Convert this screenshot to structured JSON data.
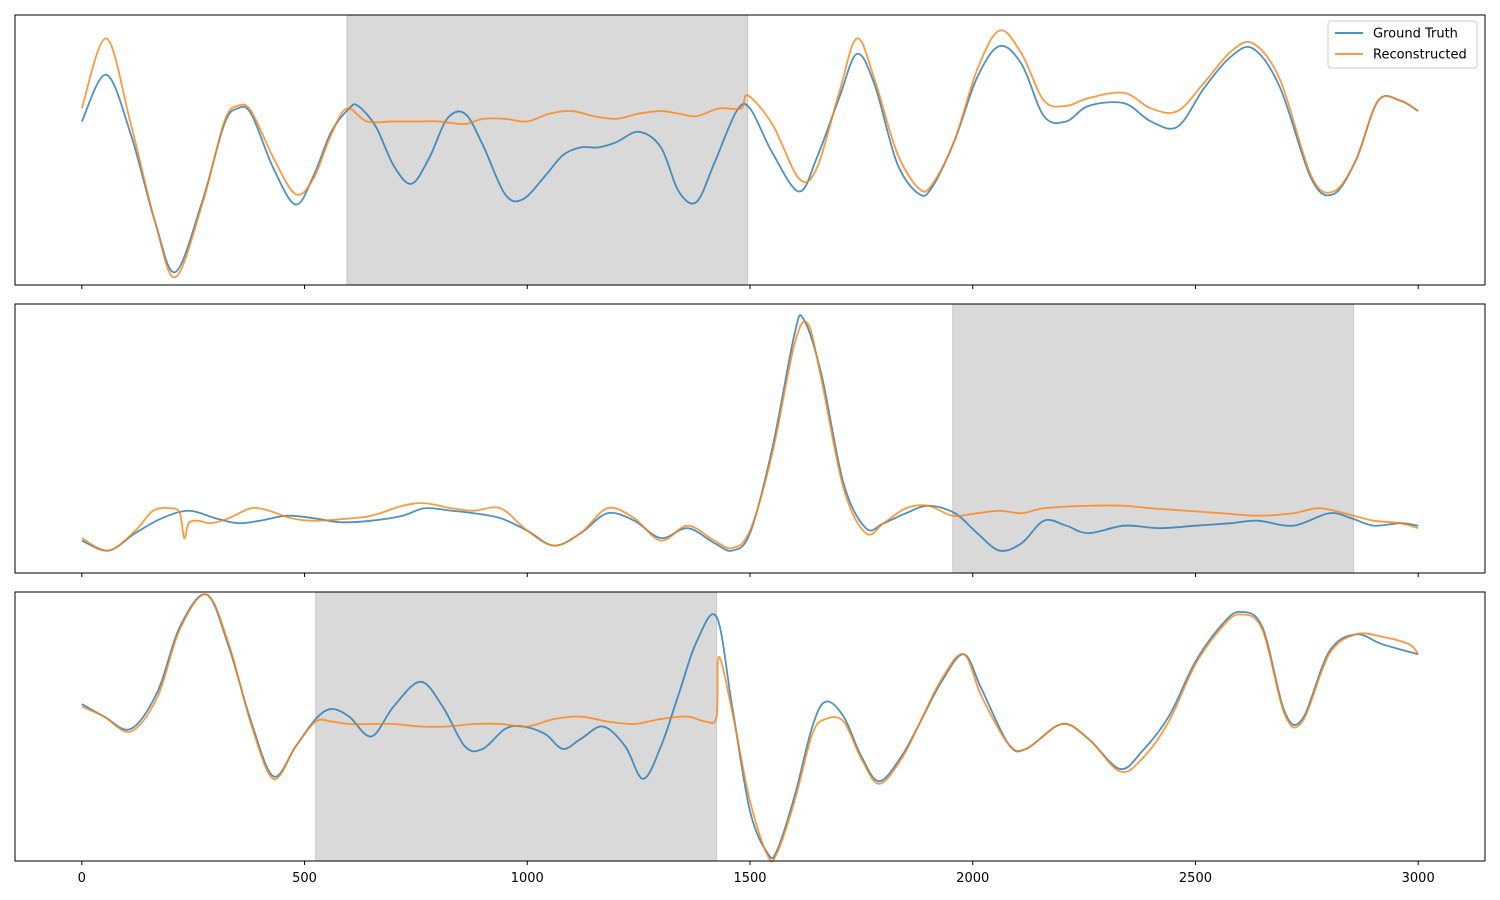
{
  "chart_data": [
    {
      "type": "line",
      "xlim": [
        -150,
        3150
      ],
      "ylim": [
        -2.6,
        2.6
      ],
      "masked_region": [
        595,
        1495
      ],
      "x_ticks": [
        "0",
        "500",
        "1000",
        "1500",
        "2000",
        "2500",
        "3000"
      ],
      "x_tick_labels_shown": false,
      "y_ticks_shown": false,
      "legend": {
        "position": "top-right",
        "entries": [
          "Ground Truth",
          "Reconstructed"
        ]
      },
      "series": [
        {
          "name": "Ground Truth",
          "color": "#1f77b4",
          "x": [
            0,
            55,
            110,
            165,
            210,
            270,
            320,
            350,
            380,
            430,
            480,
            520,
            560,
            600,
            620,
            660,
            700,
            740,
            780,
            820,
            860,
            900,
            950,
            990,
            1040,
            1080,
            1120,
            1160,
            1200,
            1250,
            1300,
            1340,
            1380,
            1420,
            1470,
            1500,
            1550,
            1610,
            1650,
            1700,
            1740,
            1780,
            1830,
            1880,
            1910,
            1960,
            2010,
            2060,
            2110,
            2160,
            2210,
            2260,
            2340,
            2400,
            2460,
            2520,
            2580,
            2630,
            2690,
            2760,
            2810,
            2860,
            2910,
            2960,
            3000
          ],
          "y": [
            0.55,
            1.45,
            0.3,
            -1.4,
            -2.35,
            -1.0,
            0.5,
            0.8,
            0.7,
            -0.35,
            -1.05,
            -0.5,
            0.35,
            0.8,
            0.85,
            0.45,
            -0.3,
            -0.65,
            -0.15,
            0.6,
            0.7,
            0.1,
            -0.85,
            -0.95,
            -0.5,
            -0.1,
            0.05,
            0.05,
            0.15,
            0.35,
            0.05,
            -0.8,
            -1.0,
            -0.25,
            0.75,
            0.8,
            -0.05,
            -0.8,
            -0.15,
            1.0,
            1.85,
            1.25,
            -0.25,
            -0.85,
            -0.7,
            0.2,
            1.4,
            2.0,
            1.65,
            0.65,
            0.55,
            0.85,
            0.9,
            0.55,
            0.45,
            1.2,
            1.8,
            1.95,
            1.2,
            -0.55,
            -0.85,
            -0.2,
            0.95,
            0.95,
            0.75
          ]
        },
        {
          "name": "Reconstructed",
          "color": "#ff7f0e",
          "x": [
            0,
            55,
            110,
            165,
            210,
            270,
            320,
            350,
            380,
            430,
            480,
            520,
            560,
            595,
            640,
            700,
            760,
            800,
            860,
            900,
            950,
            1000,
            1050,
            1100,
            1150,
            1200,
            1250,
            1300,
            1340,
            1380,
            1430,
            1480,
            1495,
            1550,
            1610,
            1650,
            1700,
            1740,
            1780,
            1830,
            1880,
            1910,
            1960,
            2010,
            2060,
            2110,
            2160,
            2210,
            2260,
            2340,
            2400,
            2460,
            2520,
            2580,
            2630,
            2690,
            2760,
            2810,
            2860,
            2910,
            2960,
            3000
          ],
          "y": [
            0.8,
            2.15,
            0.5,
            -1.4,
            -2.45,
            -1.05,
            0.55,
            0.85,
            0.75,
            -0.15,
            -0.85,
            -0.55,
            0.3,
            0.8,
            0.55,
            0.55,
            0.55,
            0.55,
            0.5,
            0.6,
            0.6,
            0.55,
            0.7,
            0.75,
            0.65,
            0.6,
            0.7,
            0.75,
            0.7,
            0.65,
            0.8,
            0.8,
            1.05,
            0.5,
            -0.55,
            -0.35,
            1.1,
            2.15,
            1.35,
            -0.05,
            -0.75,
            -0.65,
            0.2,
            1.55,
            2.3,
            1.85,
            0.95,
            0.85,
            1.0,
            1.1,
            0.8,
            0.75,
            1.3,
            1.9,
            2.05,
            1.35,
            -0.5,
            -0.8,
            -0.2,
            0.95,
            0.95,
            0.75
          ]
        }
      ]
    },
    {
      "type": "line",
      "xlim": [
        -150,
        3150
      ],
      "ylim": [
        -1.0,
        4.4
      ],
      "masked_region": [
        1955,
        2855
      ],
      "x_ticks": [
        "0",
        "500",
        "1000",
        "1500",
        "2000",
        "2500",
        "3000"
      ],
      "x_tick_labels_shown": false,
      "y_ticks_shown": false,
      "series": [
        {
          "name": "Ground Truth",
          "color": "#1f77b4",
          "x": [
            0,
            60,
            120,
            180,
            240,
            300,
            350,
            400,
            460,
            520,
            580,
            650,
            720,
            770,
            830,
            880,
            940,
            1000,
            1060,
            1120,
            1180,
            1240,
            1300,
            1360,
            1420,
            1460,
            1500,
            1550,
            1600,
            1620,
            1660,
            1710,
            1760,
            1800,
            1850,
            1900,
            1960,
            2010,
            2060,
            2110,
            2160,
            2210,
            2260,
            2340,
            2420,
            2500,
            2580,
            2640,
            2720,
            2800,
            2850,
            2900,
            2960,
            3000
          ],
          "y": [
            -0.35,
            -0.55,
            -0.2,
            0.1,
            0.25,
            0.1,
            0.0,
            0.05,
            0.15,
            0.1,
            0.02,
            0.05,
            0.15,
            0.3,
            0.25,
            0.2,
            0.1,
            -0.15,
            -0.45,
            -0.2,
            0.2,
            0.05,
            -0.3,
            -0.1,
            -0.4,
            -0.55,
            -0.2,
            1.5,
            3.8,
            4.1,
            3.0,
            0.8,
            -0.1,
            0.0,
            0.2,
            0.35,
            0.2,
            -0.2,
            -0.55,
            -0.4,
            0.05,
            -0.05,
            -0.2,
            -0.05,
            -0.1,
            -0.05,
            0.0,
            0.05,
            -0.05,
            0.2,
            0.1,
            -0.05,
            0.0,
            -0.05
          ]
        },
        {
          "name": "Reconstructed",
          "color": "#ff7f0e",
          "x": [
            0,
            60,
            120,
            160,
            200,
            220,
            230,
            240,
            260,
            290,
            330,
            380,
            420,
            470,
            520,
            580,
            650,
            720,
            770,
            830,
            880,
            940,
            1000,
            1060,
            1120,
            1180,
            1240,
            1300,
            1360,
            1420,
            1460,
            1500,
            1550,
            1600,
            1630,
            1660,
            1710,
            1760,
            1800,
            1850,
            1900,
            1955,
            2010,
            2060,
            2110,
            2160,
            2260,
            2340,
            2400,
            2480,
            2560,
            2640,
            2720,
            2780,
            2855,
            2900,
            2960,
            3000
          ],
          "y": [
            -0.3,
            -0.55,
            -0.15,
            0.25,
            0.3,
            0.2,
            -0.3,
            0.0,
            0.05,
            0.0,
            0.1,
            0.3,
            0.25,
            0.1,
            0.05,
            0.08,
            0.15,
            0.35,
            0.4,
            0.3,
            0.25,
            0.3,
            -0.15,
            -0.45,
            -0.2,
            0.3,
            0.1,
            -0.35,
            -0.05,
            -0.35,
            -0.5,
            -0.15,
            1.4,
            3.6,
            4.0,
            2.9,
            0.7,
            -0.2,
            0.0,
            0.3,
            0.35,
            0.15,
            0.2,
            0.25,
            0.2,
            0.3,
            0.35,
            0.35,
            0.3,
            0.25,
            0.2,
            0.15,
            0.2,
            0.3,
            0.15,
            0.05,
            0.0,
            -0.1
          ]
        }
      ]
    },
    {
      "type": "line",
      "xlim": [
        -150,
        3150
      ],
      "ylim": [
        -2.8,
        2.6
      ],
      "masked_region": [
        525,
        1425
      ],
      "x_ticks": [
        "0",
        "500",
        "1000",
        "1500",
        "2000",
        "2500",
        "3000"
      ],
      "x_tick_labels_shown": true,
      "y_ticks_shown": false,
      "series": [
        {
          "name": "Ground Truth",
          "color": "#1f77b4",
          "x": [
            0,
            50,
            110,
            170,
            220,
            280,
            330,
            380,
            430,
            480,
            525,
            560,
            600,
            650,
            700,
            760,
            810,
            860,
            900,
            950,
            990,
            1040,
            1080,
            1120,
            1170,
            1220,
            1260,
            1300,
            1340,
            1380,
            1425,
            1460,
            1500,
            1540,
            1560,
            1600,
            1640,
            1670,
            1710,
            1750,
            1790,
            1840,
            1880,
            1930,
            1980,
            2020,
            2080,
            2120,
            2200,
            2260,
            2330,
            2380,
            2440,
            2500,
            2560,
            2600,
            2650,
            2700,
            2740,
            2800,
            2860,
            2920,
            3000
          ],
          "y": [
            0.35,
            0.1,
            -0.15,
            0.6,
            1.9,
            2.55,
            1.5,
            0.0,
            -1.1,
            -0.5,
            0.05,
            0.25,
            0.1,
            -0.3,
            0.3,
            0.8,
            0.3,
            -0.5,
            -0.55,
            -0.15,
            -0.1,
            -0.25,
            -0.55,
            -0.35,
            -0.1,
            -0.5,
            -1.15,
            -0.5,
            0.55,
            1.6,
            2.1,
            0.3,
            -1.8,
            -2.65,
            -2.6,
            -1.5,
            -0.1,
            0.4,
            0.1,
            -0.7,
            -1.2,
            -0.7,
            -0.05,
            0.8,
            1.35,
            0.65,
            -0.45,
            -0.55,
            -0.05,
            -0.35,
            -0.95,
            -0.6,
            0.1,
            1.2,
            1.95,
            2.2,
            1.9,
            0.2,
            0.05,
            1.4,
            1.75,
            1.55,
            1.35
          ]
        },
        {
          "name": "Reconstructed",
          "color": "#ff7f0e",
          "x": [
            0,
            50,
            110,
            170,
            220,
            280,
            330,
            380,
            430,
            480,
            525,
            560,
            600,
            650,
            700,
            760,
            820,
            880,
            940,
            1000,
            1060,
            1120,
            1180,
            1240,
            1300,
            1360,
            1400,
            1425,
            1430,
            1460,
            1500,
            1540,
            1560,
            1600,
            1640,
            1670,
            1710,
            1750,
            1790,
            1840,
            1880,
            1930,
            1980,
            2020,
            2080,
            2120,
            2200,
            2260,
            2330,
            2380,
            2440,
            2500,
            2560,
            2600,
            2650,
            2700,
            2740,
            2800,
            2860,
            2920,
            2980,
            3000
          ],
          "y": [
            0.3,
            0.1,
            -0.2,
            0.5,
            1.85,
            2.55,
            1.55,
            -0.05,
            -1.15,
            -0.5,
            0.0,
            0.0,
            -0.05,
            -0.05,
            -0.05,
            -0.1,
            -0.1,
            -0.05,
            -0.05,
            -0.1,
            0.05,
            0.1,
            0.0,
            -0.05,
            0.05,
            0.1,
            0.0,
            0.1,
            1.3,
            0.2,
            -1.6,
            -2.7,
            -2.65,
            -1.6,
            -0.25,
            0.05,
            0.0,
            -0.75,
            -1.25,
            -0.75,
            -0.05,
            0.85,
            1.35,
            0.5,
            -0.45,
            -0.55,
            -0.05,
            -0.35,
            -1.0,
            -0.75,
            0.0,
            1.15,
            1.9,
            2.15,
            1.85,
            0.15,
            0.0,
            1.35,
            1.75,
            1.7,
            1.55,
            1.35
          ]
        }
      ]
    }
  ]
}
